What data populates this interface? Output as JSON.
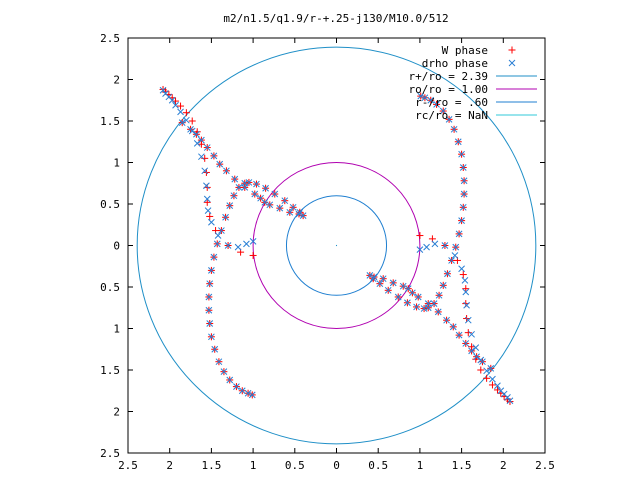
{
  "chart_data": {
    "type": "scatter",
    "title": "m2/n1.5/q1.9/r-+.25-j130/M10.0/512",
    "xlabel": "",
    "ylabel": "",
    "xlim": [
      -2.5,
      2.5
    ],
    "ylim": [
      -2.5,
      2.5
    ],
    "x_ticks": [
      -2.5,
      -2,
      -1.5,
      -1,
      -0.5,
      0,
      0.5,
      1,
      1.5,
      2,
      2.5
    ],
    "y_ticks": [
      -2.5,
      -2,
      -1.5,
      -1,
      -0.5,
      0,
      0.5,
      1,
      1.5,
      2,
      2.5
    ],
    "x_tick_labels": [
      "2.5",
      "2",
      "1.5",
      "1",
      "0.5",
      "0",
      "0.5",
      "1",
      "1.5",
      "2",
      "2.5"
    ],
    "y_tick_labels": [
      "2.5",
      "2",
      "1.5",
      "1",
      "0.5",
      "0",
      "0.5",
      "1",
      "1.5",
      "2",
      "2.5"
    ],
    "grid": false,
    "legend_position": "top-right",
    "series": [
      {
        "name": "W phase",
        "marker": "plus",
        "color": "#ff0000",
        "x": [
          1.0,
          1.15,
          1.3,
          1.45,
          1.52,
          1.55,
          1.55,
          1.56,
          1.58,
          1.62,
          1.67,
          1.73,
          1.8,
          1.87,
          1.93,
          1.97,
          2.01,
          2.05,
          2.08,
          1.85,
          1.75,
          1.68,
          1.62,
          1.55,
          1.47,
          1.4,
          1.32,
          1.22,
          1.1,
          0.98,
          0.91,
          0.86,
          0.8,
          0.68,
          0.56,
          0.45,
          0.4,
          0.44,
          0.52,
          0.62,
          0.74,
          0.85,
          0.96,
          1.05,
          1.1,
          1.17,
          1.23,
          1.28,
          1.33,
          1.38,
          1.43,
          1.47,
          1.5,
          1.52,
          1.53,
          1.53,
          1.52,
          1.5,
          1.46,
          1.41,
          1.35,
          1.28,
          1.2,
          1.13,
          1.06,
          1.01,
          -1.0,
          -1.15,
          -1.3,
          -1.45,
          -1.52,
          -1.55,
          -1.55,
          -1.56,
          -1.58,
          -1.62,
          -1.67,
          -1.73,
          -1.8,
          -1.87,
          -1.93,
          -1.97,
          -2.01,
          -2.05,
          -2.08,
          -1.85,
          -1.75,
          -1.68,
          -1.62,
          -1.55,
          -1.47,
          -1.4,
          -1.32,
          -1.22,
          -1.1,
          -0.98,
          -0.91,
          -0.86,
          -0.8,
          -0.68,
          -0.56,
          -0.45,
          -0.4,
          -0.44,
          -0.52,
          -0.62,
          -0.74,
          -0.85,
          -0.96,
          -1.05,
          -1.1,
          -1.17,
          -1.23,
          -1.28,
          -1.33,
          -1.38,
          -1.43,
          -1.47,
          -1.5,
          -1.52,
          -1.53,
          -1.53,
          -1.52,
          -1.5,
          -1.46,
          -1.41,
          -1.35,
          -1.28,
          -1.2,
          -1.13,
          -1.06,
          -1.01
        ],
        "y": [
          0.12,
          0.08,
          0.0,
          -0.18,
          -0.35,
          -0.52,
          -0.7,
          -0.88,
          -1.05,
          -1.22,
          -1.37,
          -1.5,
          -1.6,
          -1.68,
          -1.74,
          -1.78,
          -1.82,
          -1.86,
          -1.88,
          -1.48,
          -1.4,
          -1.34,
          -1.27,
          -1.18,
          -1.08,
          -0.98,
          -0.9,
          -0.8,
          -0.7,
          -0.62,
          -0.57,
          -0.52,
          -0.49,
          -0.45,
          -0.4,
          -0.38,
          -0.36,
          -0.4,
          -0.46,
          -0.54,
          -0.62,
          -0.69,
          -0.74,
          -0.76,
          -0.75,
          -0.7,
          -0.6,
          -0.48,
          -0.34,
          -0.18,
          -0.02,
          0.14,
          0.3,
          0.46,
          0.62,
          0.78,
          0.94,
          1.1,
          1.25,
          1.4,
          1.52,
          1.62,
          1.7,
          1.75,
          1.78,
          1.8,
          -0.12,
          -0.08,
          0.0,
          0.18,
          0.35,
          0.52,
          0.7,
          0.88,
          1.05,
          1.22,
          1.37,
          1.5,
          1.6,
          1.68,
          1.74,
          1.78,
          1.82,
          1.86,
          1.88,
          1.48,
          1.4,
          1.34,
          1.27,
          1.18,
          1.08,
          0.98,
          0.9,
          0.8,
          0.7,
          0.62,
          0.57,
          0.52,
          0.49,
          0.45,
          0.4,
          0.38,
          0.36,
          0.4,
          0.46,
          0.54,
          0.62,
          0.69,
          0.74,
          0.76,
          0.75,
          0.7,
          0.6,
          0.48,
          0.34,
          0.18,
          0.02,
          -0.14,
          -0.3,
          -0.46,
          -0.62,
          -0.78,
          -0.94,
          -1.1,
          -1.25,
          -1.4,
          -1.52,
          -1.62,
          -1.7,
          -1.75,
          -1.78,
          -1.8
        ]
      },
      {
        "name": "drho phase",
        "marker": "cross",
        "color": "#2a7fd4",
        "x": [
          1.0,
          1.08,
          1.18,
          1.3,
          1.42,
          1.5,
          1.54,
          1.55,
          1.56,
          1.58,
          1.62,
          1.67,
          1.73,
          1.8,
          1.87,
          1.93,
          1.97,
          2.01,
          2.05,
          2.08,
          1.85,
          1.75,
          1.68,
          1.62,
          1.55,
          1.47,
          1.4,
          1.32,
          1.22,
          1.1,
          0.98,
          0.91,
          0.86,
          0.8,
          0.68,
          0.56,
          0.45,
          0.4,
          0.44,
          0.52,
          0.62,
          0.74,
          0.85,
          0.96,
          1.05,
          1.1,
          1.17,
          1.23,
          1.28,
          1.33,
          1.38,
          1.43,
          1.47,
          1.5,
          1.52,
          1.53,
          1.53,
          1.52,
          1.5,
          1.46,
          1.41,
          1.35,
          1.28,
          1.2,
          1.13,
          1.06,
          1.01,
          -1.0,
          -1.08,
          -1.18,
          -1.3,
          -1.42,
          -1.5,
          -1.54,
          -1.55,
          -1.56,
          -1.58,
          -1.62,
          -1.67,
          -1.73,
          -1.8,
          -1.87,
          -1.93,
          -1.97,
          -2.01,
          -2.05,
          -2.08,
          -1.85,
          -1.75,
          -1.68,
          -1.62,
          -1.55,
          -1.47,
          -1.4,
          -1.32,
          -1.22,
          -1.1,
          -0.98,
          -0.91,
          -0.86,
          -0.8,
          -0.68,
          -0.56,
          -0.45,
          -0.4,
          -0.44,
          -0.52,
          -0.62,
          -0.74,
          -0.85,
          -0.96,
          -1.05,
          -1.1,
          -1.17,
          -1.23,
          -1.28,
          -1.33,
          -1.38,
          -1.43,
          -1.47,
          -1.5,
          -1.52,
          -1.53,
          -1.53,
          -1.52,
          -1.5,
          -1.46,
          -1.41,
          -1.35,
          -1.28,
          -1.2,
          -1.13,
          -1.06,
          -1.01
        ],
        "y": [
          -0.05,
          -0.02,
          0.02,
          0.0,
          -0.12,
          -0.28,
          -0.42,
          -0.56,
          -0.72,
          -0.9,
          -1.07,
          -1.23,
          -1.38,
          -1.51,
          -1.61,
          -1.69,
          -1.75,
          -1.79,
          -1.83,
          -1.87,
          -1.48,
          -1.4,
          -1.34,
          -1.27,
          -1.18,
          -1.08,
          -0.98,
          -0.9,
          -0.8,
          -0.7,
          -0.62,
          -0.57,
          -0.52,
          -0.49,
          -0.45,
          -0.4,
          -0.38,
          -0.36,
          -0.4,
          -0.46,
          -0.54,
          -0.62,
          -0.69,
          -0.74,
          -0.76,
          -0.75,
          -0.7,
          -0.6,
          -0.48,
          -0.34,
          -0.18,
          -0.02,
          0.14,
          0.3,
          0.46,
          0.62,
          0.78,
          0.94,
          1.1,
          1.25,
          1.4,
          1.52,
          1.62,
          1.7,
          1.75,
          1.78,
          1.8,
          0.05,
          0.02,
          -0.02,
          0.0,
          0.12,
          0.28,
          0.42,
          0.56,
          0.72,
          0.9,
          1.07,
          1.23,
          1.38,
          1.51,
          1.61,
          1.69,
          1.75,
          1.79,
          1.83,
          1.87,
          1.48,
          1.4,
          1.34,
          1.27,
          1.18,
          1.08,
          0.98,
          0.9,
          0.8,
          0.7,
          0.62,
          0.57,
          0.52,
          0.49,
          0.45,
          0.4,
          0.38,
          0.36,
          0.4,
          0.46,
          0.54,
          0.62,
          0.69,
          0.74,
          0.76,
          0.75,
          0.7,
          0.6,
          0.48,
          0.34,
          0.18,
          0.02,
          -0.14,
          -0.3,
          -0.46,
          -0.62,
          -0.78,
          -0.94,
          -1.1,
          -1.25,
          -1.4,
          -1.52,
          -1.62,
          -1.7,
          -1.75,
          -1.78,
          -1.8
        ]
      },
      {
        "name": "r+/ro = 2.39",
        "kind": "circle",
        "radius": 2.39,
        "color": "#1f8fc7"
      },
      {
        "name": "ro/ro = 1.00",
        "kind": "circle",
        "radius": 1.0,
        "color": "#b000b0"
      },
      {
        "name": "r-/ro = .60",
        "kind": "circle",
        "radius": 0.6,
        "color": "#1f7fd0"
      },
      {
        "name": "rc/ro = NaN",
        "kind": "circle",
        "radius": null,
        "color": "#30c8d8"
      }
    ]
  }
}
